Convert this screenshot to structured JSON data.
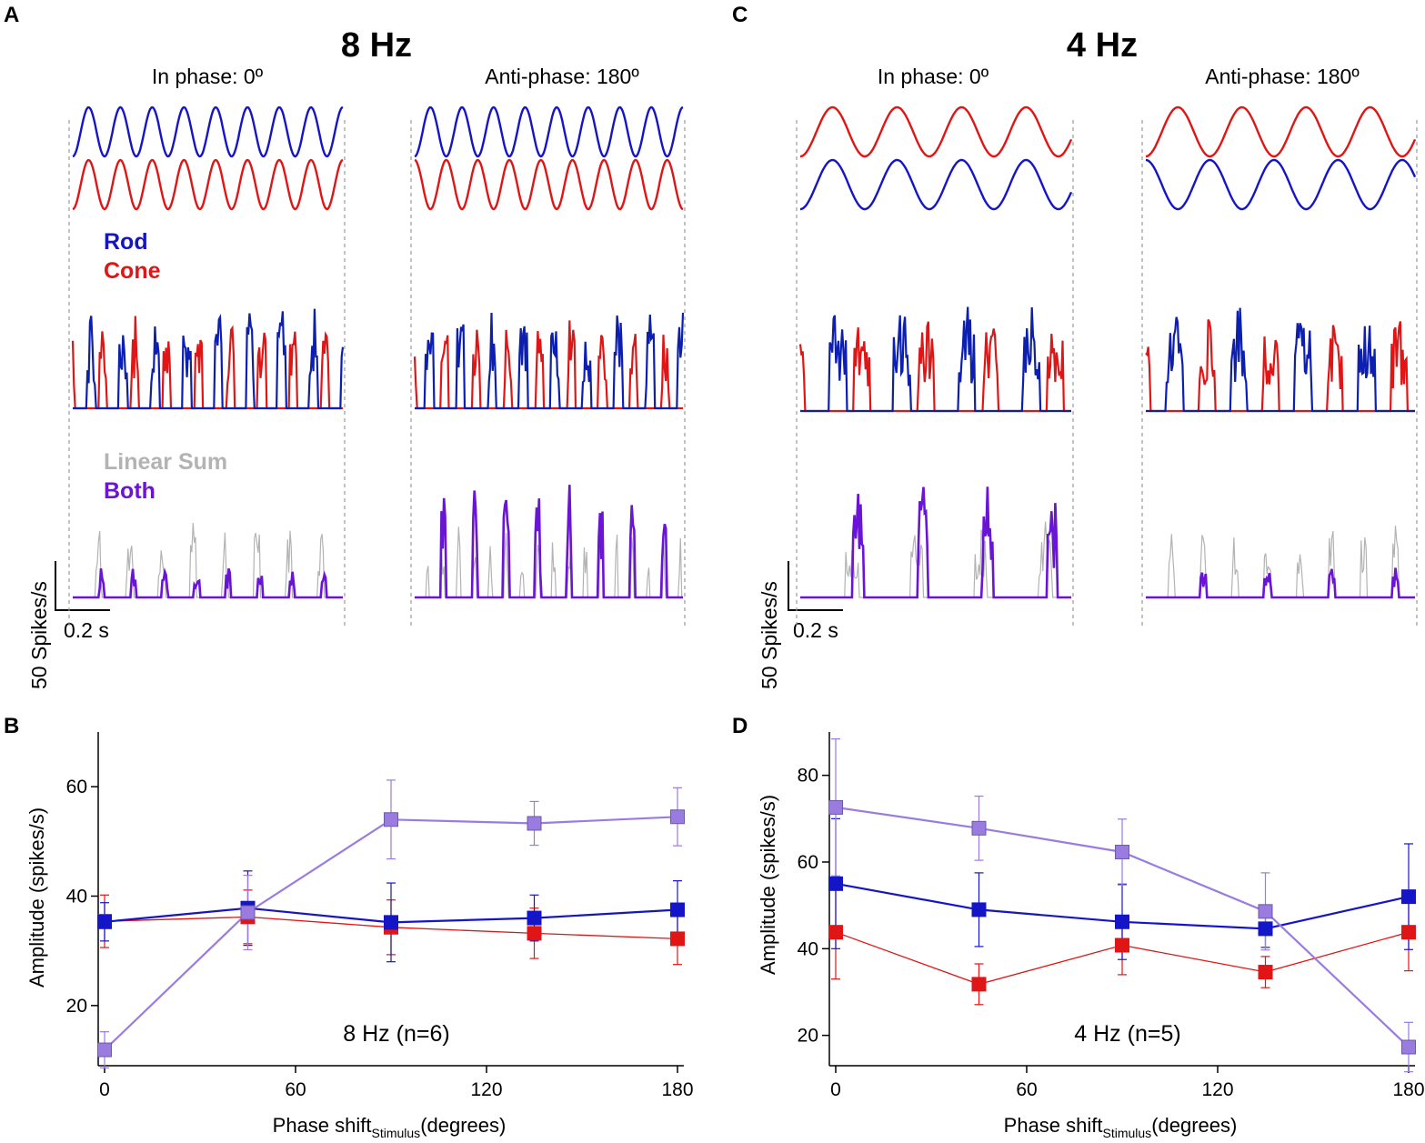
{
  "colors": {
    "rod": "#1515c8",
    "cone": "#e01515",
    "rod_dark": "#0c1fb0",
    "both": "#6a14d6",
    "linear_sum": "#b3b3b3",
    "both_plot": "#9a7be0",
    "dashed": "#999999"
  },
  "top_panels": [
    {
      "letter": "A",
      "title": "8 Hz",
      "cond_left": "In phase: 0º",
      "cond_right": "Anti-phase: 180º",
      "legend_rod": "Rod",
      "legend_cone": "Cone",
      "legend_linear": "Linear Sum",
      "legend_both": "Both",
      "scale_y": "50 Spikes/s",
      "scale_x": "0.2 s",
      "frequency_hz": 8,
      "cycles_shown": 8.5
    },
    {
      "letter": "C",
      "title": "4 Hz",
      "cond_left": "In phase: 0º",
      "cond_right": "Anti-phase: 180º",
      "scale_y": "50 Spikes/s",
      "scale_x": "0.2 s",
      "frequency_hz": 4,
      "cycles_shown": 4.2
    }
  ],
  "chart_data": [
    {
      "panel": "B",
      "type": "line",
      "annotation": "8 Hz (n=6)",
      "xlabel_main": "Phase shift",
      "xlabel_sub": "Stimulus",
      "xlabel_tail": "(degrees)",
      "ylabel": "Amplitude (spikes/s)",
      "xlim": [
        -2,
        182
      ],
      "ylim": [
        9,
        70
      ],
      "xticks": [
        0,
        60,
        120,
        180
      ],
      "yticks": [
        20,
        40,
        60
      ],
      "x": [
        0,
        45,
        90,
        135,
        180
      ],
      "series": [
        {
          "name": "Rod",
          "color": "#1515c8",
          "values": [
            35.3,
            37.8,
            35.2,
            36.0,
            37.5
          ],
          "err": [
            3.5,
            6.8,
            7.2,
            4.2,
            5.3
          ]
        },
        {
          "name": "Cone",
          "color": "#e01515",
          "values": [
            35.4,
            36.2,
            34.3,
            33.2,
            32.2
          ],
          "err": [
            4.8,
            4.9,
            5.0,
            4.6,
            4.7
          ]
        },
        {
          "name": "Both",
          "color": "#9a7be0",
          "values": [
            11.9,
            37.0,
            54.0,
            53.3,
            54.5
          ],
          "err": [
            3.3,
            6.8,
            7.2,
            4.0,
            5.3
          ]
        }
      ]
    },
    {
      "panel": "D",
      "type": "line",
      "annotation": "4 Hz (n=5)",
      "xlabel_main": "Phase shift",
      "xlabel_sub": "Stimulus",
      "xlabel_tail": "(degrees)",
      "ylabel": "Amplitude (spikes/s)",
      "xlim": [
        -2,
        182
      ],
      "ylim": [
        13,
        90
      ],
      "xticks": [
        0,
        60,
        120,
        180
      ],
      "yticks": [
        20,
        40,
        60,
        80
      ],
      "x": [
        0,
        45,
        90,
        135,
        180
      ],
      "series": [
        {
          "name": "Rod",
          "color": "#1515c8",
          "values": [
            55.0,
            49.0,
            46.2,
            44.6,
            52.0
          ],
          "err": [
            15.0,
            8.5,
            8.7,
            4.3,
            12.2
          ]
        },
        {
          "name": "Cone",
          "color": "#e01515",
          "values": [
            43.8,
            31.8,
            40.8,
            34.6,
            43.8
          ],
          "err": [
            10.8,
            4.7,
            6.8,
            3.6,
            8.9
          ]
        },
        {
          "name": "Both",
          "color": "#9a7be0",
          "values": [
            72.6,
            67.8,
            62.3,
            48.6,
            17.3
          ],
          "err": [
            15.8,
            7.4,
            7.6,
            8.9,
            5.7
          ]
        }
      ]
    }
  ]
}
